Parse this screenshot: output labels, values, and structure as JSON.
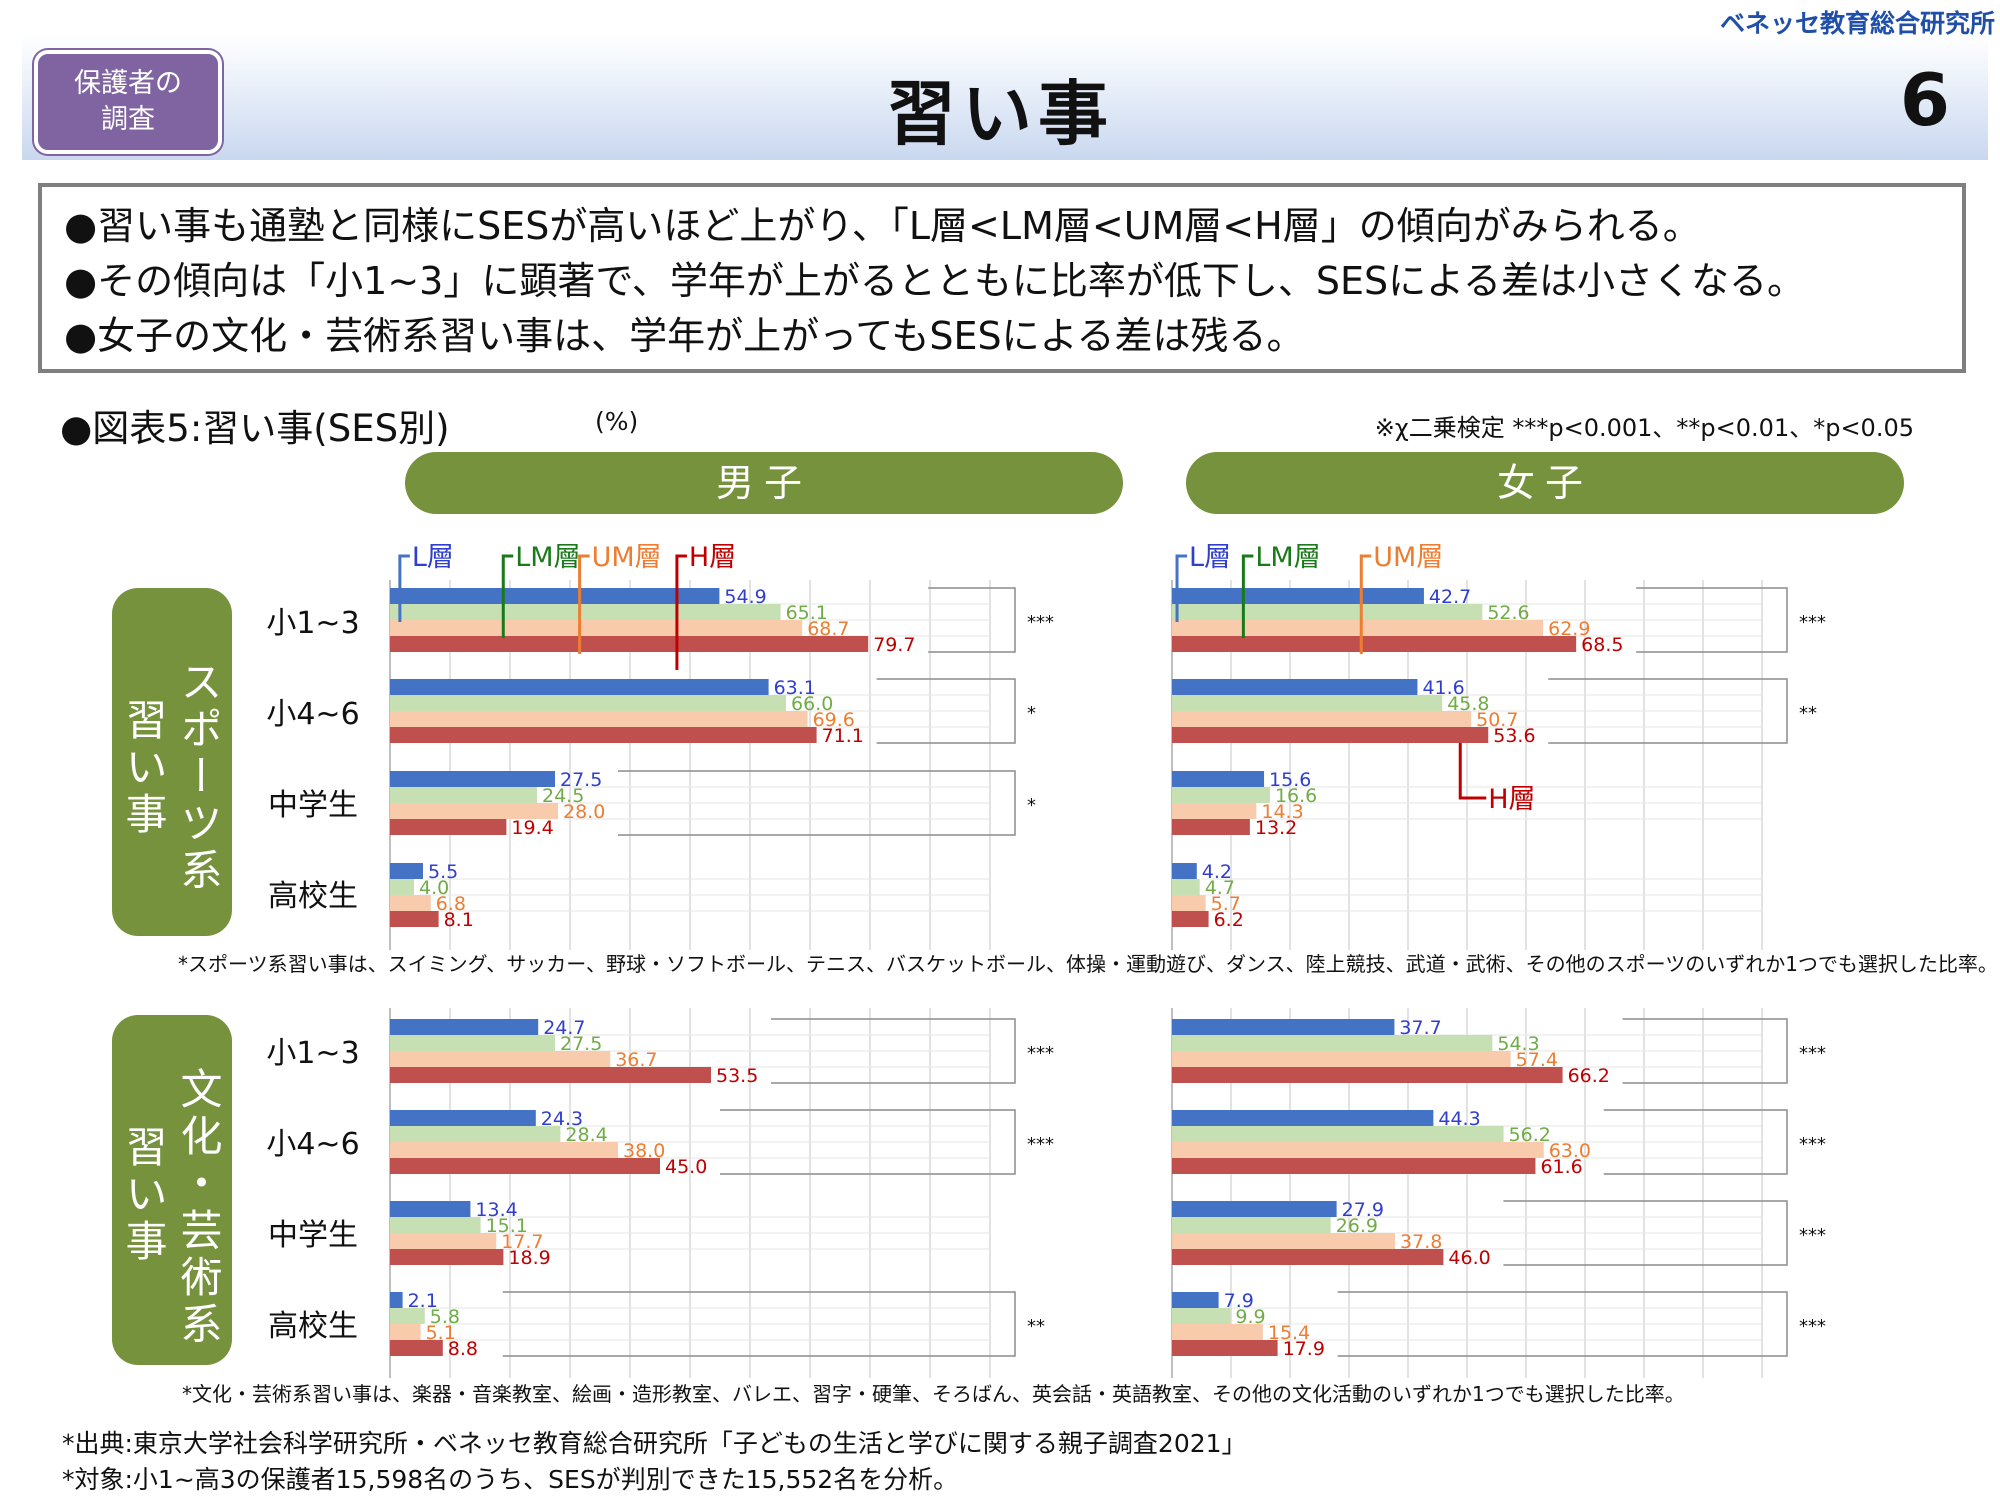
{
  "header": {
    "brand": "ベネッセ教育総合研究所",
    "badge_line1": "保護者の",
    "badge_line2": "調査",
    "title": "習い事",
    "page_number": "6"
  },
  "summary": [
    "●習い事も通塾と同様にSESが高いほど上がり、「L層<LM層<UM層<H層」の傾向がみられる。",
    "●その傾向は「小1~3」に顕著で、学年が上がるとともに比率が低下し、SESによる差は小さくなる。",
    "●女子の文化・芸術系習い事は、学年が上がってもSESによる差は残る。"
  ],
  "figure": {
    "title": "●図表5:習い事(SES別)",
    "unit": "(%)",
    "test_note": "※χ二乗検定 ***p<0.001、**p<0.01、*p<0.05",
    "gender_male": "男子",
    "gender_female": "女子",
    "category_sports_line1": "スポーツ系",
    "category_sports_line2": "習い事",
    "category_culture_line1": "文化・芸術系",
    "category_culture_line2": "習い事",
    "note_sports": "*スポーツ系習い事は、スイミング、サッカー、野球・ソフトボール、テニス、バスケットボール、体操・運動遊び、ダンス、陸上競技、武道・武術、その他のスポーツのいずれか1つでも選択した比率。",
    "note_culture": "*文化・芸術系習い事は、楽器・音楽教室、絵画・造形教室、バレエ、習字・硬筆、そろばん、英会話・英語教室、その他の文化活動のいずれか1つでも選択した比率。"
  },
  "source": {
    "line1": "*出典:東京大学社会科学研究所・ベネッセ教育総合研究所「子どもの生活と学びに関する親子調査2021」",
    "line2": "*対象:小1~高3の保護者15,598名のうち、SESが判別できた15,552名を分析。"
  },
  "colors": {
    "L": "#4472c4",
    "LM": "#c6e0b4",
    "UM": "#f8cbad",
    "H": "#c0504d",
    "L_label": "#2f3ecf",
    "LM_label": "#70ad47",
    "UM_label": "#ed7d31",
    "H_label": "#c00000",
    "LM_callout": "#1a7a1a",
    "accent": "#76923c",
    "badge": "#8064a2"
  },
  "chart_data": [
    {
      "type": "bar",
      "id": "male-sports",
      "categories": [
        "小1~3",
        "小4~6",
        "中学生",
        "高校生"
      ],
      "series": [
        {
          "name": "L層",
          "values": [
            54.9,
            63.1,
            27.5,
            5.5
          ]
        },
        {
          "name": "LM層",
          "values": [
            65.1,
            66.0,
            24.5,
            4.0
          ]
        },
        {
          "name": "UM層",
          "values": [
            68.7,
            69.6,
            28.0,
            6.8
          ]
        },
        {
          "name": "H層",
          "values": [
            79.7,
            71.1,
            19.4,
            8.1
          ]
        }
      ],
      "significance": [
        "***",
        "*",
        "*",
        ""
      ],
      "xlim": [
        0,
        100
      ]
    },
    {
      "type": "bar",
      "id": "female-sports",
      "categories": [
        "小1~3",
        "小4~6",
        "中学生",
        "高校生"
      ],
      "series": [
        {
          "name": "L層",
          "values": [
            42.7,
            41.6,
            15.6,
            4.2
          ]
        },
        {
          "name": "LM層",
          "values": [
            52.6,
            45.8,
            16.6,
            4.7
          ]
        },
        {
          "name": "UM層",
          "values": [
            62.9,
            50.7,
            14.3,
            5.7
          ]
        },
        {
          "name": "H層",
          "values": [
            68.5,
            53.6,
            13.2,
            6.2
          ]
        }
      ],
      "significance": [
        "***",
        "**",
        "",
        ""
      ],
      "xlim": [
        0,
        100
      ]
    },
    {
      "type": "bar",
      "id": "male-culture",
      "categories": [
        "小1~3",
        "小4~6",
        "中学生",
        "高校生"
      ],
      "series": [
        {
          "name": "L層",
          "values": [
            24.7,
            24.3,
            13.4,
            2.1
          ]
        },
        {
          "name": "LM層",
          "values": [
            27.5,
            28.4,
            15.1,
            5.8
          ]
        },
        {
          "name": "UM層",
          "values": [
            36.7,
            38.0,
            17.7,
            5.1
          ]
        },
        {
          "name": "H層",
          "values": [
            53.5,
            45.0,
            18.9,
            8.8
          ]
        }
      ],
      "significance": [
        "***",
        "***",
        "",
        "**"
      ],
      "xlim": [
        0,
        100
      ]
    },
    {
      "type": "bar",
      "id": "female-culture",
      "categories": [
        "小1~3",
        "小4~6",
        "中学生",
        "高校生"
      ],
      "series": [
        {
          "name": "L層",
          "values": [
            37.7,
            44.3,
            27.9,
            7.9
          ]
        },
        {
          "name": "LM層",
          "values": [
            54.3,
            56.2,
            26.9,
            9.9
          ]
        },
        {
          "name": "UM層",
          "values": [
            57.4,
            63.0,
            37.8,
            15.4
          ]
        },
        {
          "name": "H層",
          "values": [
            66.2,
            61.6,
            46.0,
            17.9
          ]
        }
      ],
      "significance": [
        "***",
        "***",
        "***",
        "***"
      ],
      "xlim": [
        0,
        100
      ]
    }
  ]
}
